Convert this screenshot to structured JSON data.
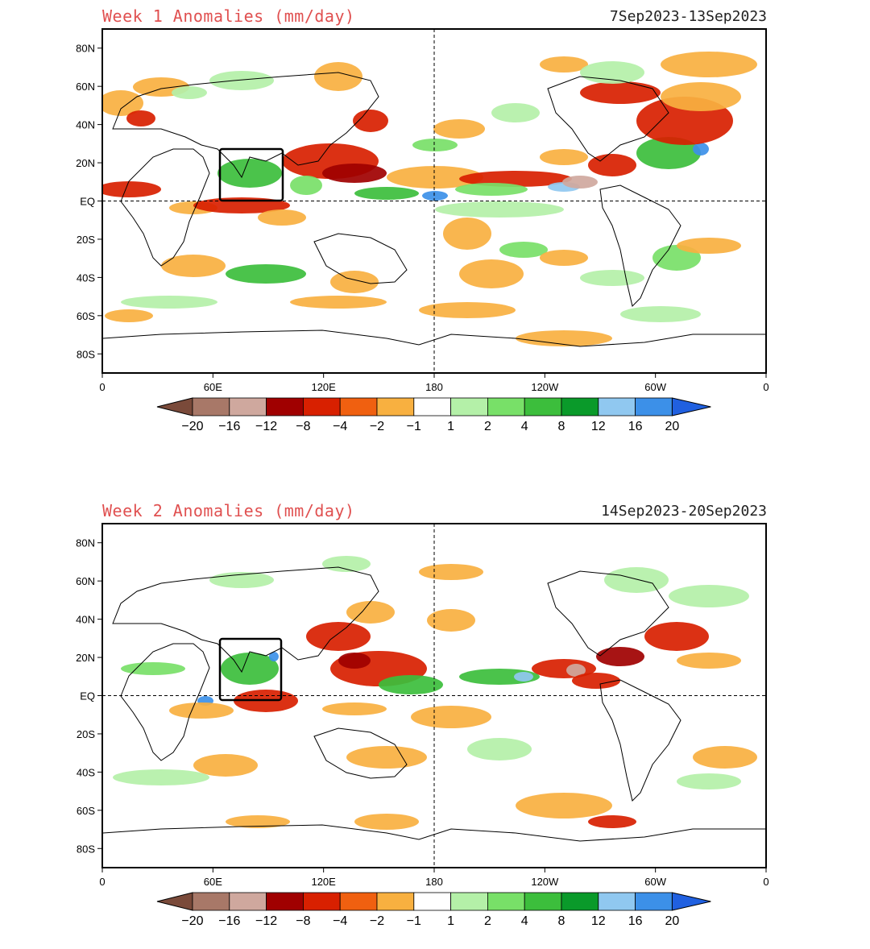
{
  "panels": [
    {
      "title": "Week 1 Anomalies (mm/day)",
      "dates": "7Sep2023-13Sep2023"
    },
    {
      "title": "Week 2 Anomalies (mm/day)",
      "dates": "14Sep2023-20Sep2023"
    }
  ],
  "map": {
    "lat_labels": [
      "80N",
      "60N",
      "40N",
      "20N",
      "EQ",
      "20S",
      "40S",
      "60S",
      "80S"
    ],
    "lon_labels": [
      "0",
      "60E",
      "120E",
      "180",
      "120W",
      "60W",
      "0"
    ]
  },
  "colorbar": {
    "labels": [
      "-20",
      "-16",
      "-12",
      "-8",
      "-4",
      "-2",
      "-1",
      "1",
      "2",
      "4",
      "8",
      "12",
      "16",
      "20"
    ],
    "colors": [
      "#7a4a3a",
      "#a87868",
      "#cfa89e",
      "#a00000",
      "#d82000",
      "#f06010",
      "#f8b040",
      "#ffffff",
      "#b4f0a8",
      "#78e068",
      "#3cbe3c",
      "#0a9a2a",
      "#90c8f0",
      "#3c90e8",
      "#2060e0"
    ]
  },
  "colors": {
    "title": "#e05050",
    "frame": "#000000",
    "ocean_bg": "#ffffff"
  }
}
